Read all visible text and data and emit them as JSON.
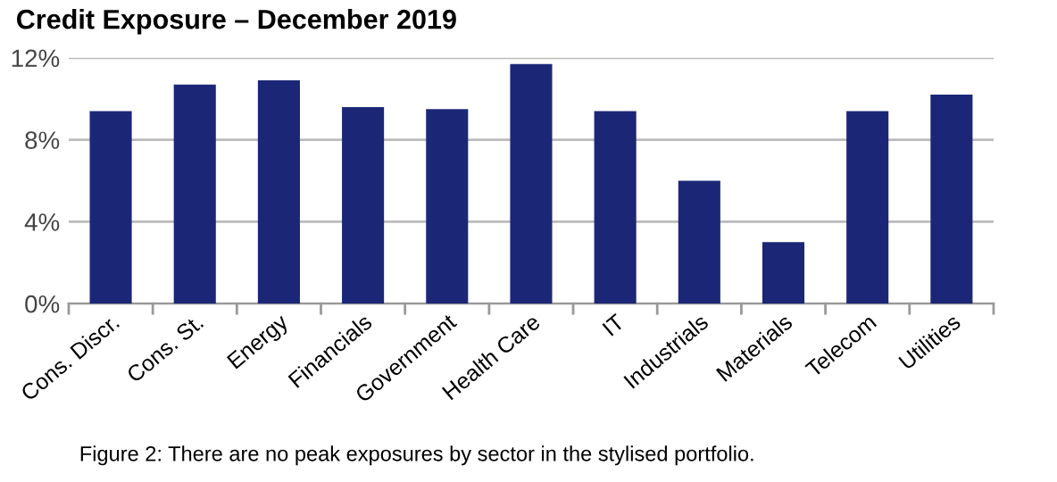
{
  "chart_data": {
    "type": "bar",
    "title": "Credit Exposure – December 2019",
    "categories": [
      "Cons. Discr.",
      "Cons. St.",
      "Energy",
      "Financials",
      "Government",
      "Health Care",
      "IT",
      "Industrials",
      "Materials",
      "Telecom",
      "Utilities"
    ],
    "values": [
      9.4,
      10.7,
      10.9,
      9.6,
      9.5,
      11.7,
      9.4,
      6.0,
      3.0,
      9.4,
      10.2
    ],
    "color": "#1b2776",
    "ylim": [
      0,
      12
    ],
    "yticks": [
      {
        "value": 0,
        "label": "0%"
      },
      {
        "value": 4,
        "label": "4%"
      },
      {
        "value": 8,
        "label": "8%"
      },
      {
        "value": 12,
        "label": "12%"
      }
    ],
    "grid": "y",
    "annotations": [
      "Figure 2: There are no peak exposures by sector in the stylised portfolio."
    ]
  }
}
